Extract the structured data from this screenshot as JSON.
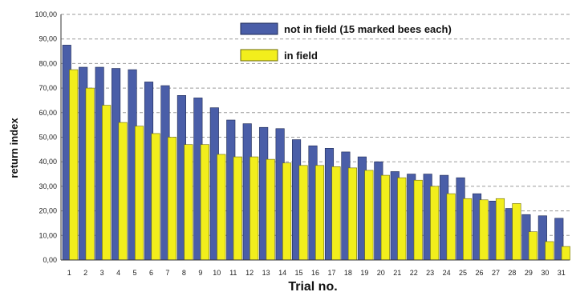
{
  "chart_data": {
    "type": "bar",
    "xlabel": "Trial no.",
    "ylabel": "return index",
    "ylim": [
      0,
      100
    ],
    "yticks": [
      "0,00",
      "10,00",
      "20,00",
      "30,00",
      "40,00",
      "50,00",
      "60,00",
      "70,00",
      "80,00",
      "90,00",
      "100,00"
    ],
    "grid": "horizontal dashed",
    "legend_position": "top-right",
    "categories": [
      "1",
      "2",
      "3",
      "4",
      "5",
      "6",
      "7",
      "8",
      "9",
      "10",
      "11",
      "12",
      "13",
      "14",
      "15",
      "16",
      "17",
      "18",
      "19",
      "20",
      "21",
      "22",
      "23",
      "24",
      "25",
      "26",
      "27",
      "28",
      "29",
      "30",
      "31"
    ],
    "series": [
      {
        "name": "not in field (15 marked bees each)",
        "color": "#4a5ea8",
        "values": [
          87.5,
          78.5,
          78.5,
          78,
          77.5,
          72.5,
          71,
          67,
          66,
          62,
          57,
          55.5,
          54,
          53.5,
          49,
          46.5,
          45.5,
          44,
          42,
          40,
          36,
          35,
          35,
          34.5,
          33.5,
          27,
          24,
          21,
          18.5,
          18,
          17
        ]
      },
      {
        "name": "in field",
        "color": "#f2ee1c",
        "values": [
          77.5,
          70,
          63,
          56,
          54.5,
          51.5,
          50,
          47,
          47,
          43,
          42,
          42,
          41,
          39.5,
          38.5,
          38.5,
          38,
          37.5,
          36.5,
          34.5,
          33.5,
          32.5,
          30,
          27,
          25,
          24.5,
          25,
          23,
          11.5,
          7.5,
          5.5
        ]
      }
    ]
  }
}
